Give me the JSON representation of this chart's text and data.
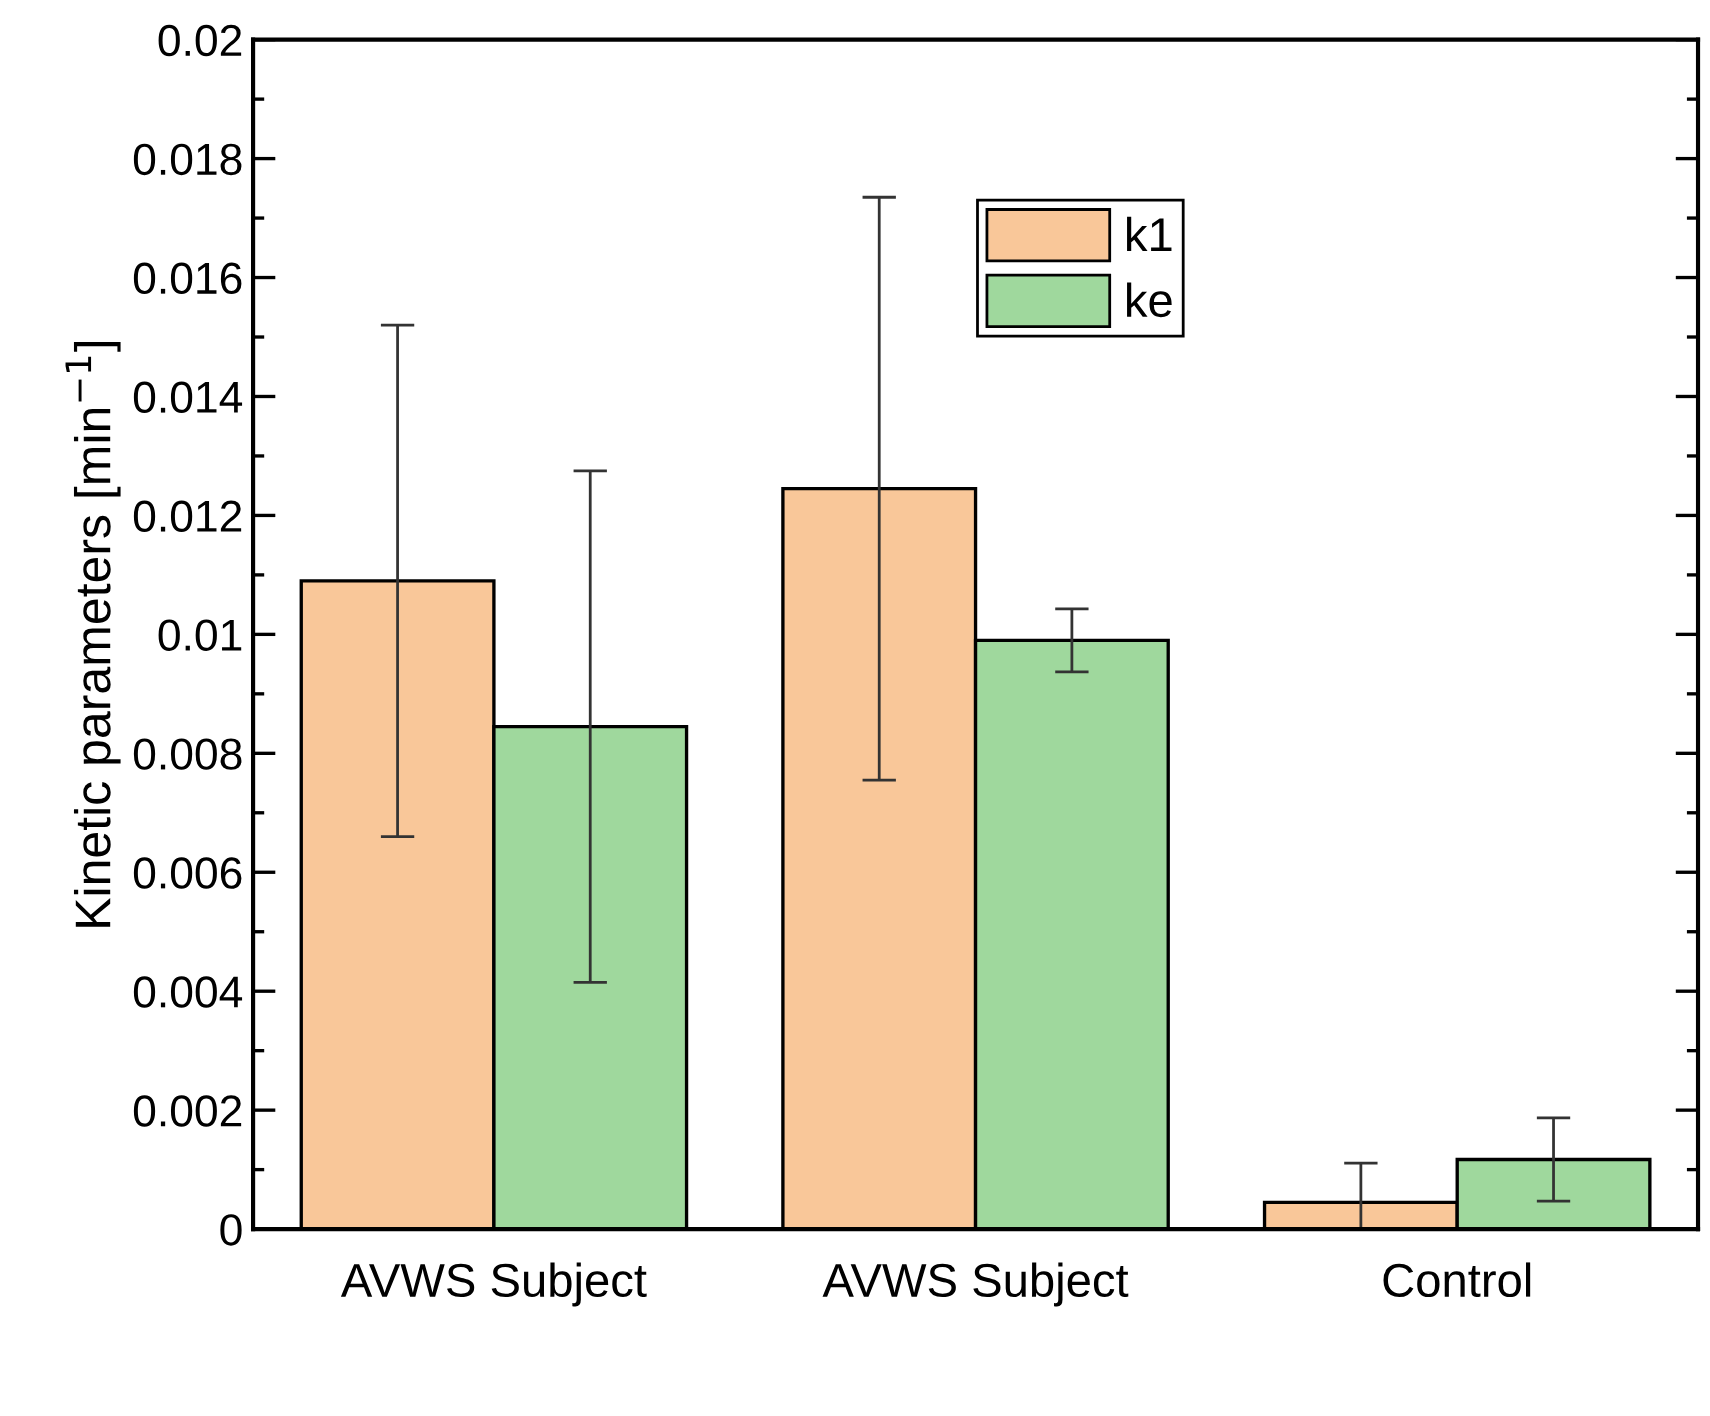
{
  "chart_data": {
    "type": "bar",
    "categories": [
      "AVWS Subject",
      "AVWS Subject",
      "Control"
    ],
    "ylabel": "Kinetic parameters [min$^{−1}$]",
    "series": [
      {
        "name": "k1",
        "color": "#f9c799",
        "values": [
          0.0109,
          0.01245,
          0.00045
        ],
        "errors": [
          0.0043,
          0.0049,
          0.00066
        ]
      },
      {
        "name": "ke",
        "color": "#9fd89d",
        "values": [
          0.00845,
          0.0099,
          0.00117
        ],
        "errors": [
          0.0043,
          0.00053,
          0.0007
        ]
      }
    ],
    "ylim": [
      0,
      0.02
    ],
    "yticks": [
      0,
      0.002,
      0.004,
      0.006,
      0.008,
      0.01,
      0.012,
      0.014,
      0.016,
      0.018,
      0.02
    ],
    "grid": false,
    "legend": "top right"
  }
}
